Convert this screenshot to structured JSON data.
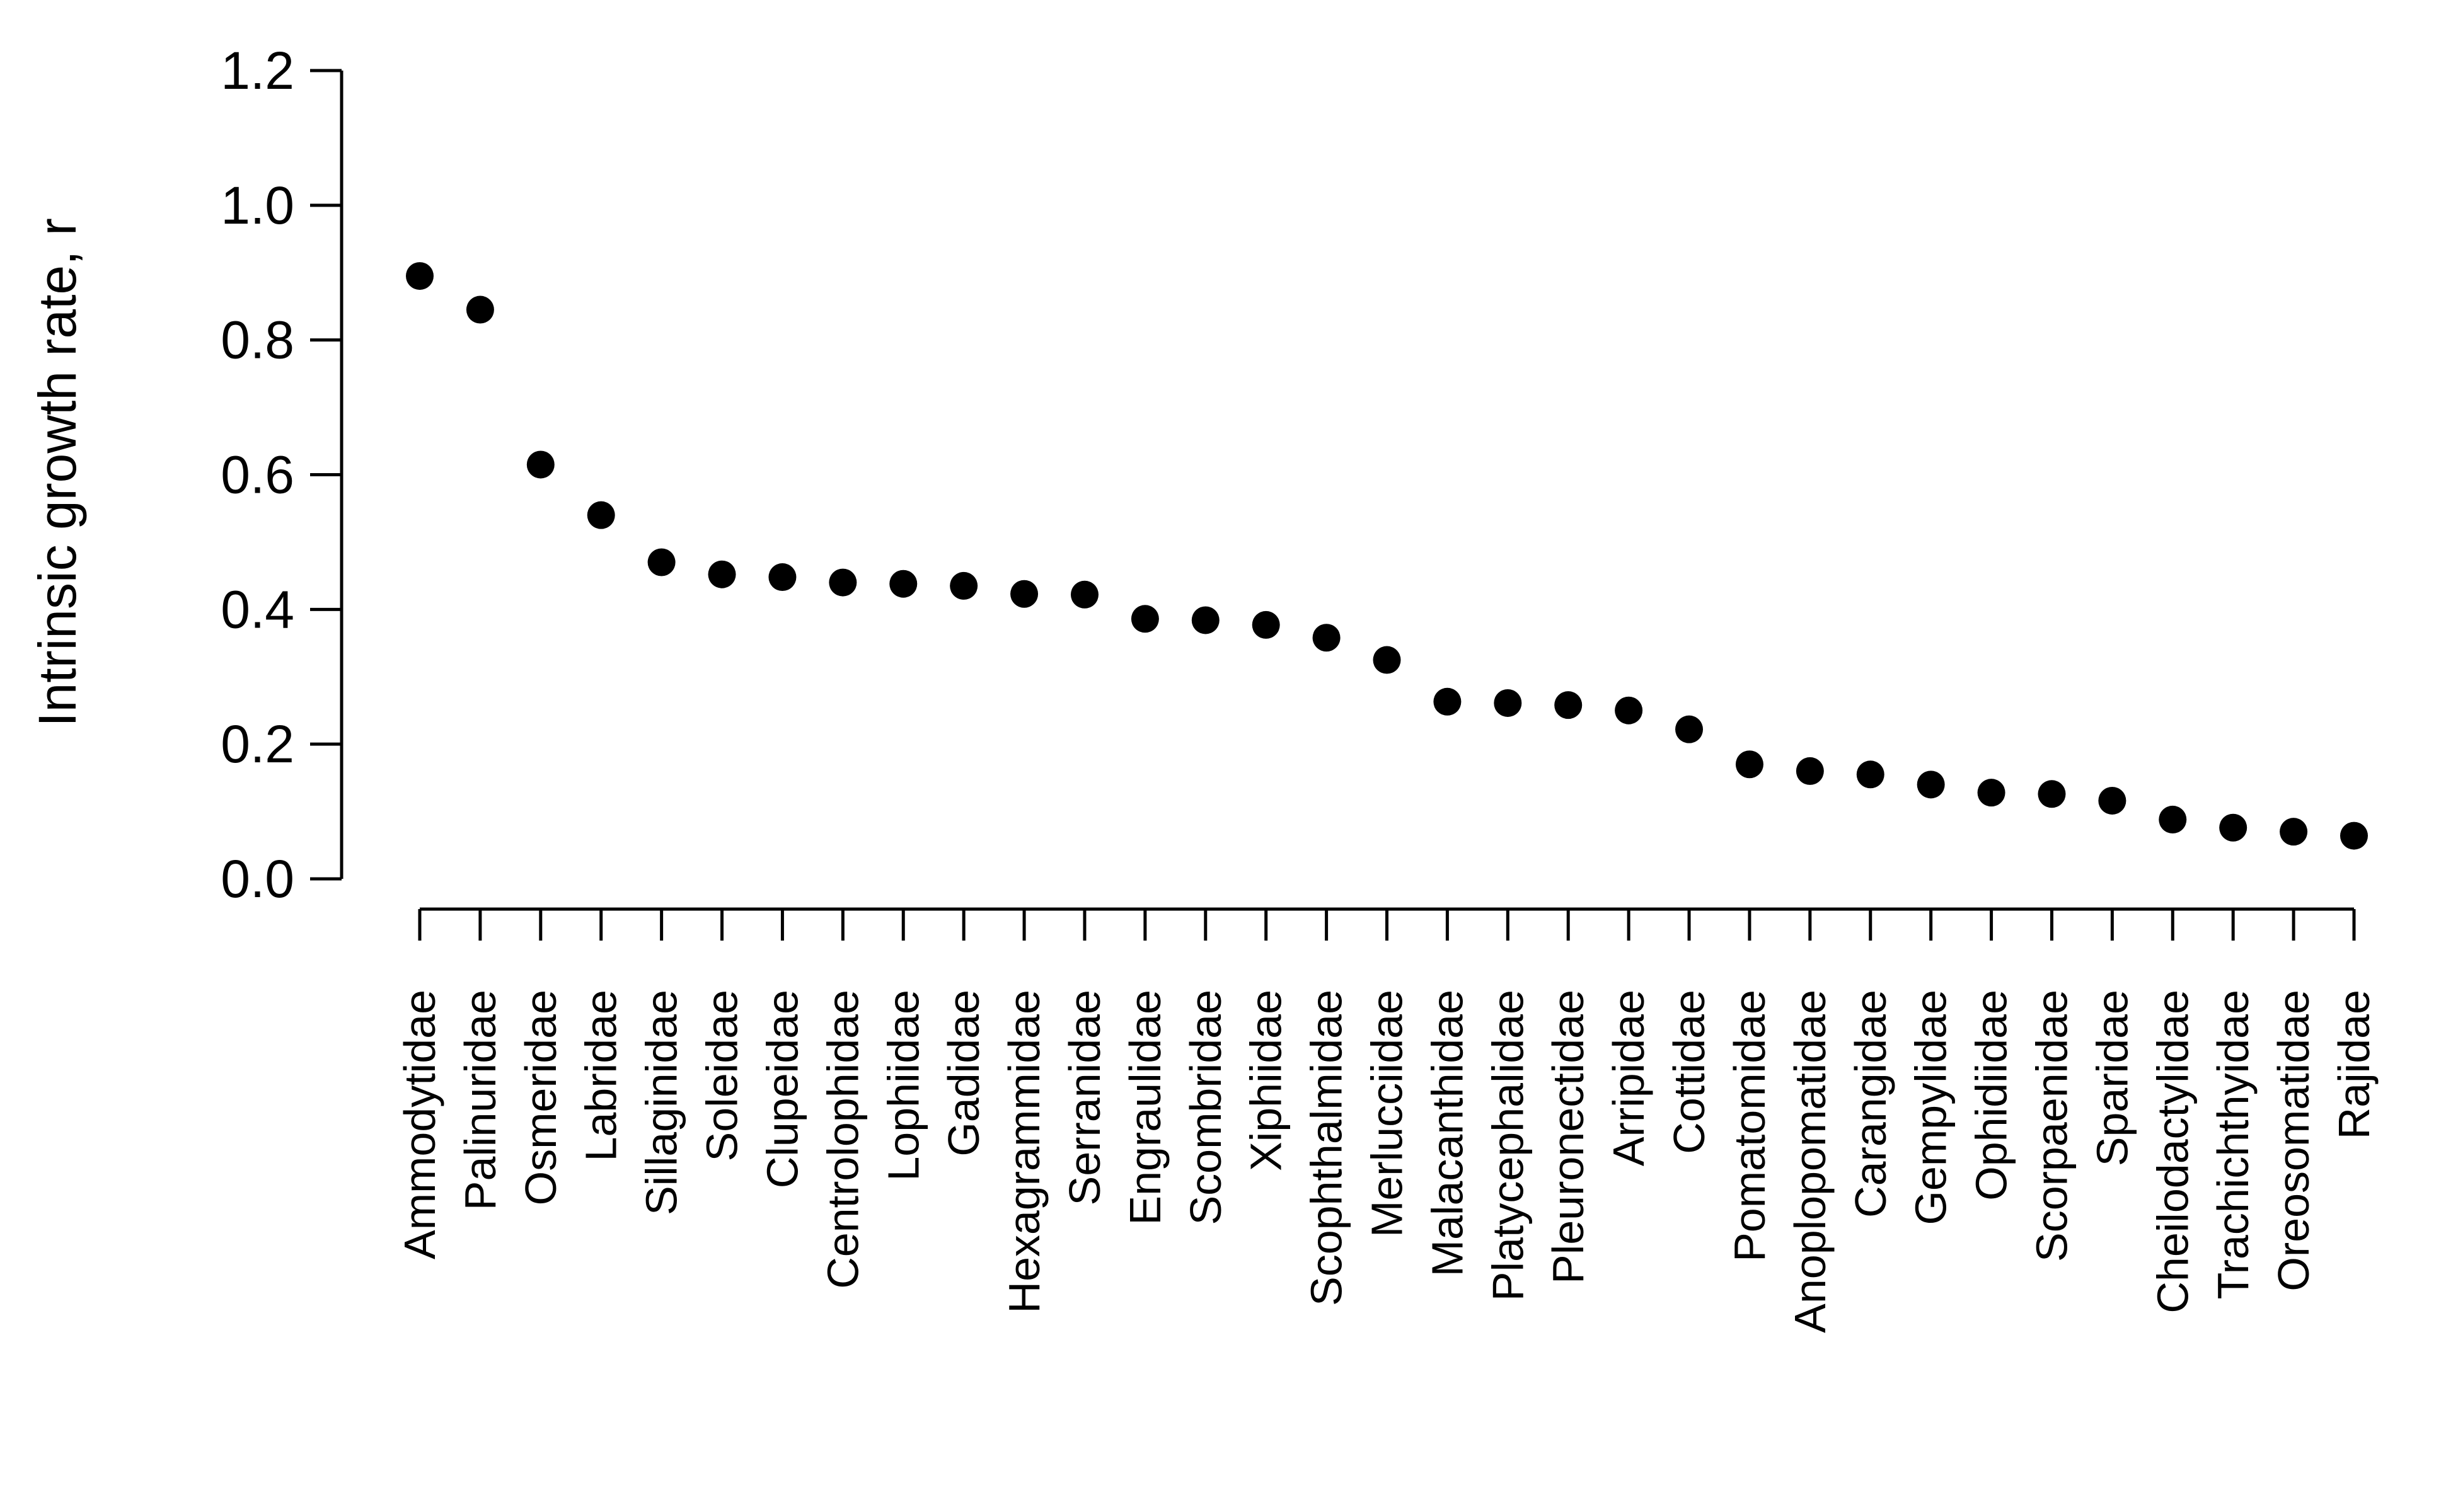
{
  "chart_data": {
    "type": "scatter",
    "title": "",
    "xlabel": "",
    "ylabel": "Intrinsic growth rate, r",
    "ylim": [
      0,
      1.2
    ],
    "yticks": [
      "0.0",
      "0.2",
      "0.4",
      "0.6",
      "0.8",
      "1.0",
      "1.2"
    ],
    "grid": false,
    "legend": "none",
    "marker_color": "#000000",
    "categories": [
      "Ammodytidae",
      "Palinuridae",
      "Osmeridae",
      "Labridae",
      "Sillaginidae",
      "Soleidae",
      "Clupeidae",
      "Centrolophidae",
      "Lophiidae",
      "Gadidae",
      "Hexagrammidae",
      "Serranidae",
      "Engraulidae",
      "Scombridae",
      "Xiphiidae",
      "Scophthalmidae",
      "Merlucciidae",
      "Malacanthidae",
      "Platycephalidae",
      "Pleuronectidae",
      "Arripidae",
      "Cottidae",
      "Pomatomidae",
      "Anoplopomatidae",
      "Carangidae",
      "Gempylidae",
      "Ophidiidae",
      "Scorpaenidae",
      "Sparidae",
      "Cheilodactylidae",
      "Trachichthyidae",
      "Oreosomatidae",
      "Rajidae"
    ],
    "values": [
      0.895,
      0.845,
      0.615,
      0.54,
      0.47,
      0.452,
      0.448,
      0.44,
      0.438,
      0.435,
      0.423,
      0.422,
      0.386,
      0.384,
      0.377,
      0.358,
      0.325,
      0.263,
      0.261,
      0.258,
      0.25,
      0.222,
      0.17,
      0.16,
      0.155,
      0.14,
      0.128,
      0.126,
      0.116,
      0.088,
      0.076,
      0.07,
      0.064
    ]
  }
}
